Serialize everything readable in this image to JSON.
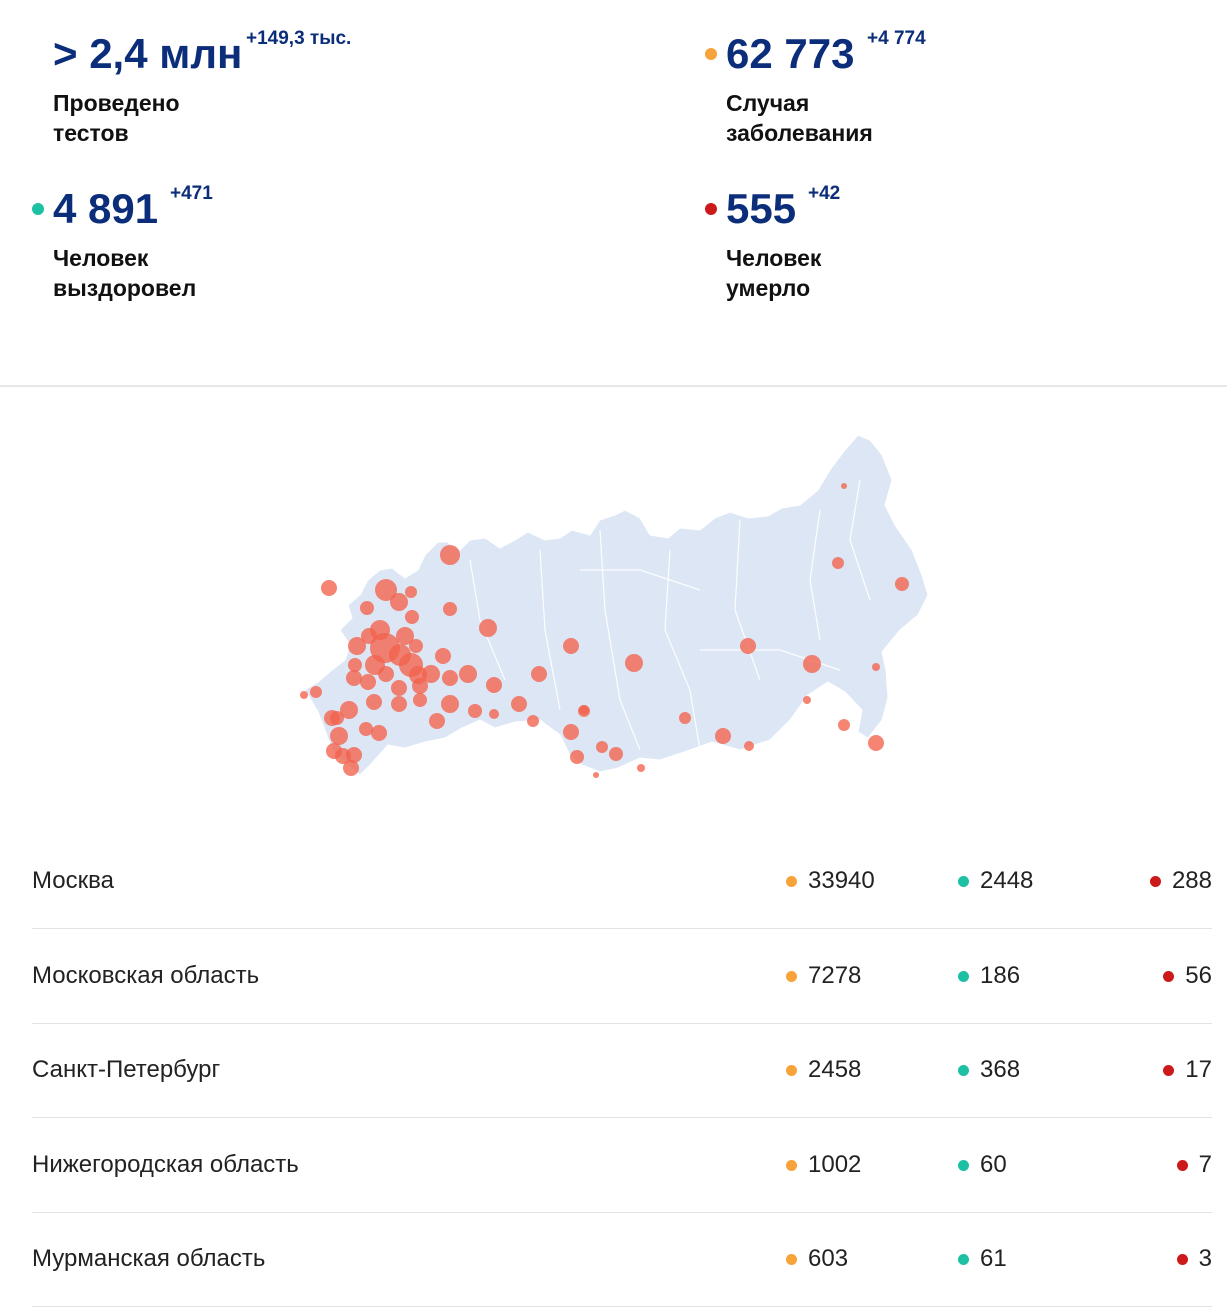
{
  "colors": {
    "cases": "#f7a33a",
    "recovered": "#1ec0a3",
    "deaths": "#cc1a1a",
    "primary": "#0b2d7a",
    "map_land": "#dde6f5",
    "map_bubble": "#f2624b"
  },
  "stats": {
    "tests": {
      "value": "> 2,4 млн",
      "delta": "+149,3 тыс.",
      "label": "Проведено\nтестов"
    },
    "cases": {
      "value": "62 773",
      "delta": "+4 774",
      "label": "Случая\nзаболевания"
    },
    "recovered": {
      "value": "4 891",
      "delta": "+471",
      "label": "Человек\nвыздоровел"
    },
    "deaths": {
      "value": "555",
      "delta": "+42",
      "label": "Человек\nумерло"
    }
  },
  "map": {
    "description": ""
  },
  "regions": [
    {
      "name": "Москва",
      "cases": "33940",
      "recovered": "2448",
      "deaths": "288"
    },
    {
      "name": "Московская область",
      "cases": "7278",
      "recovered": "186",
      "deaths": "56"
    },
    {
      "name": "Санкт-Петербург",
      "cases": "2458",
      "recovered": "368",
      "deaths": "17"
    },
    {
      "name": "Нижегородская область",
      "cases": "1002",
      "recovered": "60",
      "deaths": "7"
    },
    {
      "name": "Мурманская область",
      "cases": "603",
      "recovered": "61",
      "deaths": "3"
    }
  ]
}
